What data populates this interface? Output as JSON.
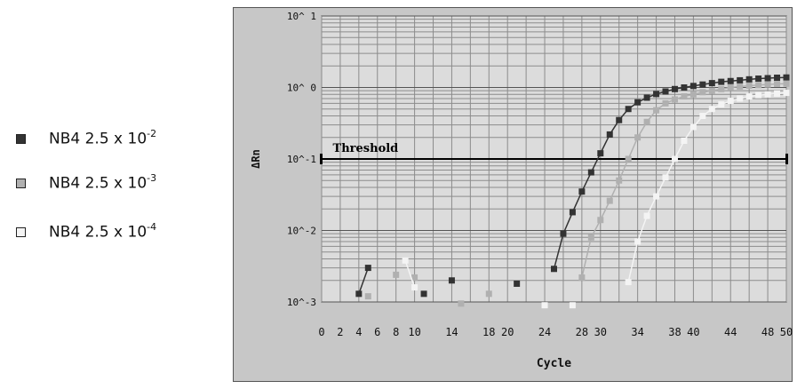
{
  "legend": {
    "items": [
      {
        "base": "NB4 2.5 x 10",
        "exp": "-2",
        "color": "#333333"
      },
      {
        "base": "NB4 2.5 x 10",
        "exp": "-3",
        "color": "#b0b0b0"
      },
      {
        "base": "NB4 2.5 x 10",
        "exp": "-4",
        "color": "#f4f4f4"
      }
    ]
  },
  "chart_data": {
    "type": "line",
    "xlabel": "Cycle",
    "ylabel": "ΔRn",
    "xlim": [
      0,
      50
    ],
    "ylim": [
      0.001,
      10
    ],
    "yscale": "log",
    "x_ticks": [
      0,
      2,
      4,
      6,
      8,
      10,
      14,
      18,
      20,
      24,
      28,
      30,
      34,
      38,
      40,
      44,
      48,
      50
    ],
    "y_ticks": [
      {
        "value": 10,
        "label": "10^ 1"
      },
      {
        "value": 1,
        "label": "10^ 0"
      },
      {
        "value": 0.1,
        "label": "10^-1"
      },
      {
        "value": 0.01,
        "label": "10^-2"
      },
      {
        "value": 0.001,
        "label": "10^-3"
      }
    ],
    "threshold": {
      "value": 0.1,
      "label": "Threshold"
    },
    "grid": true,
    "colors": {
      "panel": "#c7c7c7",
      "plot_bg": "#dcdcdc",
      "grid": "#8c8c8c"
    },
    "series": [
      {
        "name": "NB4 2.5 x 10-2",
        "color": "#333333",
        "x": [
          4,
          5,
          11,
          14,
          21,
          25,
          26,
          27,
          28,
          29,
          30,
          31,
          32,
          33,
          34,
          35,
          36,
          37,
          38,
          39,
          40,
          41,
          42,
          43,
          44,
          45,
          46,
          47,
          48,
          49,
          50
        ],
        "y": [
          0.0013,
          0.003,
          0.0013,
          0.002,
          0.0018,
          0.0029,
          0.009,
          0.018,
          0.035,
          0.065,
          0.12,
          0.22,
          0.35,
          0.5,
          0.62,
          0.72,
          0.81,
          0.88,
          0.95,
          1.0,
          1.05,
          1.1,
          1.15,
          1.2,
          1.23,
          1.26,
          1.3,
          1.33,
          1.35,
          1.37,
          1.38
        ]
      },
      {
        "name": "NB4 2.5 x 10-3",
        "color": "#b0b0b0",
        "x": [
          5,
          8,
          10,
          15,
          18,
          28,
          29,
          30,
          31,
          32,
          33,
          34,
          35,
          36,
          37,
          38,
          39,
          40,
          41,
          42,
          43,
          44,
          45,
          46,
          47,
          48,
          49,
          50
        ],
        "y": [
          0.0012,
          0.0024,
          0.0022,
          0.00095,
          0.0013,
          0.0022,
          0.008,
          0.014,
          0.026,
          0.05,
          0.1,
          0.2,
          0.33,
          0.48,
          0.6,
          0.68,
          0.75,
          0.8,
          0.86,
          0.9,
          0.95,
          1.0,
          1.03,
          1.06,
          1.08,
          1.1,
          1.12,
          1.13
        ]
      },
      {
        "name": "NB4 2.5 x 10-4",
        "color": "#f4f4f4",
        "x": [
          9,
          10,
          24,
          27,
          33,
          34,
          35,
          36,
          37,
          38,
          39,
          40,
          41,
          42,
          43,
          44,
          45,
          46,
          47,
          48,
          49,
          50
        ],
        "y": [
          0.0038,
          0.0016,
          0.0009,
          0.0009,
          0.0019,
          0.007,
          0.016,
          0.03,
          0.055,
          0.1,
          0.18,
          0.28,
          0.4,
          0.5,
          0.58,
          0.65,
          0.7,
          0.75,
          0.78,
          0.8,
          0.82,
          0.84
        ]
      }
    ]
  }
}
